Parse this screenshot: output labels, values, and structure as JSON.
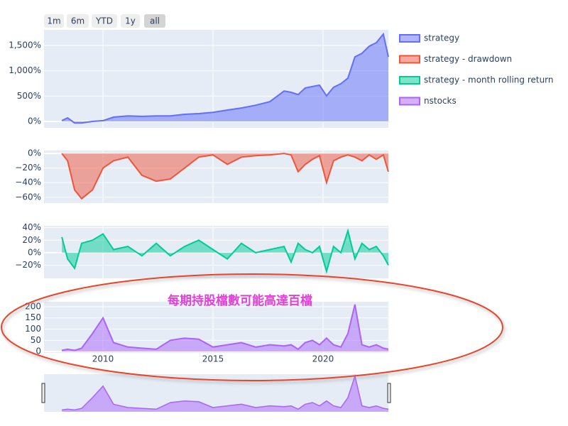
{
  "range_selector": {
    "buttons": [
      "1m",
      "6m",
      "YTD",
      "1y",
      "all"
    ]
  },
  "chart_data": [
    {
      "type": "area",
      "x": [
        2008.13,
        2008.39,
        2008.71,
        2009.03,
        2009.52,
        2010.0,
        2010.48,
        2011.13,
        2011.77,
        2012.42,
        2013.06,
        2013.71,
        2014.35,
        2015.0,
        2015.65,
        2016.29,
        2016.94,
        2017.58,
        2018.23,
        2018.55,
        2018.87,
        2019.19,
        2019.52,
        2019.84,
        2020.16,
        2020.48,
        2020.81,
        2021.13,
        2021.45,
        2021.77,
        2022.1,
        2022.42,
        2022.74,
        2022.97
      ],
      "series": [
        {
          "name": "strategy",
          "color": "#636efa",
          "values": [
            15,
            70,
            -30,
            -30,
            0,
            15,
            85,
            110,
            100,
            110,
            110,
            140,
            155,
            180,
            225,
            265,
            320,
            390,
            600,
            575,
            530,
            660,
            690,
            715,
            505,
            675,
            745,
            855,
            1275,
            1345,
            1485,
            1555,
            1725,
            1275
          ]
        }
      ],
      "xlim": [
        2007.32,
        2022.97
      ],
      "xticks": [
        2010,
        2015,
        2020
      ],
      "ylim": [
        -126,
        1809
      ],
      "yticks": [
        {
          "value": 0,
          "label": "0%"
        },
        {
          "value": 500,
          "label": "500%"
        },
        {
          "value": 1000,
          "label": "1,000%"
        },
        {
          "value": 1500,
          "label": "1,500%"
        }
      ],
      "grid": true
    },
    {
      "type": "area",
      "x": [
        2008.13,
        2008.39,
        2008.71,
        2009.03,
        2009.52,
        2010.0,
        2010.48,
        2011.13,
        2011.77,
        2012.42,
        2013.06,
        2013.71,
        2014.35,
        2015.0,
        2015.65,
        2016.29,
        2016.94,
        2017.58,
        2018.23,
        2018.55,
        2018.87,
        2019.19,
        2019.52,
        2019.84,
        2020.16,
        2020.48,
        2020.81,
        2021.13,
        2021.45,
        2021.77,
        2022.1,
        2022.42,
        2022.74,
        2022.97
      ],
      "series": [
        {
          "name": "strategy - drawdown",
          "color": "#ef553b",
          "values": [
            0,
            -10,
            -50,
            -62,
            -50,
            -20,
            -10,
            -5,
            -30,
            -38,
            -35,
            -20,
            -5,
            -2,
            -15,
            -5,
            -3,
            -2,
            0,
            -2,
            -25,
            -15,
            -8,
            -3,
            -40,
            -10,
            -5,
            -2,
            -5,
            -10,
            -2,
            -8,
            -2,
            -25
          ]
        }
      ],
      "xlim": [
        2007.32,
        2022.97
      ],
      "xticks": [
        2010,
        2015,
        2020
      ],
      "ylim": [
        -68,
        4
      ],
      "yticks": [
        {
          "value": -60,
          "label": "−60%"
        },
        {
          "value": -40,
          "label": "−40%"
        },
        {
          "value": -20,
          "label": "−20%"
        },
        {
          "value": 0,
          "label": "0%"
        }
      ],
      "grid": true
    },
    {
      "type": "area",
      "x": [
        2008.13,
        2008.39,
        2008.71,
        2009.03,
        2009.52,
        2010.0,
        2010.48,
        2011.13,
        2011.77,
        2012.42,
        2013.06,
        2013.71,
        2014.35,
        2015.0,
        2015.65,
        2016.29,
        2016.94,
        2017.58,
        2018.23,
        2018.55,
        2018.87,
        2019.19,
        2019.52,
        2019.84,
        2020.16,
        2020.48,
        2020.81,
        2021.13,
        2021.45,
        2021.77,
        2022.1,
        2022.42,
        2022.74,
        2022.97
      ],
      "series": [
        {
          "name": "strategy - month rolling return",
          "color": "#00cc96",
          "values": [
            25,
            -10,
            -25,
            15,
            20,
            30,
            5,
            10,
            -5,
            15,
            -5,
            10,
            20,
            5,
            -10,
            15,
            0,
            5,
            10,
            -15,
            15,
            5,
            0,
            10,
            -30,
            10,
            0,
            35,
            -10,
            15,
            5,
            10,
            -5,
            -20
          ]
        }
      ],
      "xlim": [
        2007.32,
        2022.97
      ],
      "xticks": [
        2010,
        2015,
        2020
      ],
      "ylim": [
        -41,
        43
      ],
      "yticks": [
        {
          "value": -20,
          "label": "−20%"
        },
        {
          "value": 0,
          "label": "0%"
        },
        {
          "value": 20,
          "label": "20%"
        },
        {
          "value": 40,
          "label": "40%"
        }
      ],
      "grid": true
    },
    {
      "type": "area",
      "x": [
        2008.13,
        2008.39,
        2008.71,
        2009.03,
        2009.52,
        2010.0,
        2010.48,
        2011.13,
        2011.77,
        2012.42,
        2013.06,
        2013.71,
        2014.35,
        2015.0,
        2015.65,
        2016.29,
        2016.94,
        2017.58,
        2018.23,
        2018.55,
        2018.87,
        2019.19,
        2019.52,
        2019.84,
        2020.16,
        2020.48,
        2020.81,
        2021.13,
        2021.45,
        2021.77,
        2022.1,
        2022.42,
        2022.74,
        2022.97
      ],
      "series": [
        {
          "name": "nstocks",
          "color": "#ab63fa",
          "values": [
            5,
            10,
            5,
            15,
            80,
            150,
            40,
            20,
            15,
            10,
            50,
            60,
            55,
            20,
            30,
            40,
            20,
            30,
            25,
            30,
            10,
            40,
            50,
            30,
            60,
            30,
            20,
            80,
            210,
            30,
            20,
            30,
            15,
            10
          ]
        }
      ],
      "xlim": [
        2007.32,
        2022.97
      ],
      "xticks": [
        2010,
        2015,
        2020
      ],
      "ylim": [
        -6,
        222
      ],
      "yticks": [
        0,
        50,
        100,
        150,
        200
      ],
      "grid": true,
      "annotation": "每期持股檔數可能高達百檔"
    }
  ]
}
